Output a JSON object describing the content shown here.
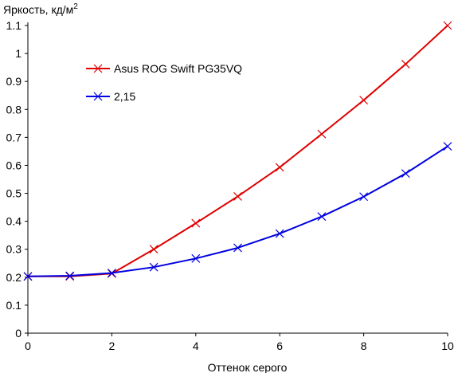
{
  "chart_data": {
    "type": "line",
    "ylabel": "Яркость, кд/м",
    "ylabel_superscript": "2",
    "xlabel": "Оттенок серого",
    "xlim": [
      0,
      10
    ],
    "ylim": [
      0,
      1.1
    ],
    "x_ticks": [
      0,
      2,
      4,
      6,
      8,
      10
    ],
    "x_tick_labels": [
      "0",
      "2",
      "4",
      "6",
      "8",
      "10"
    ],
    "y_ticks": [
      0,
      0.1,
      0.2,
      0.3,
      0.4,
      0.5,
      0.6,
      0.7,
      0.8,
      0.9,
      1,
      1.1
    ],
    "y_tick_labels": [
      "0",
      "0.1",
      "0.2",
      "0.3",
      "0.4",
      "0.5",
      "0.6",
      "0.7",
      "0.8",
      "0.9",
      "1",
      "1.1"
    ],
    "grid": false,
    "legend_position": "top-left",
    "marker": "x",
    "series": [
      {
        "name": "Asus ROG Swift PG35VQ",
        "color": "#e00000",
        "x": [
          0,
          1,
          2,
          3,
          4,
          5,
          6,
          7,
          8,
          9,
          10
        ],
        "y": [
          0.203,
          0.203,
          0.213,
          0.3,
          0.393,
          0.489,
          0.593,
          0.712,
          0.833,
          0.962,
          1.1
        ]
      },
      {
        "name": "2,15",
        "color": "#0000e0",
        "x": [
          0,
          1,
          2,
          3,
          4,
          5,
          6,
          7,
          8,
          9,
          10
        ],
        "y": [
          0.203,
          0.205,
          0.215,
          0.236,
          0.267,
          0.305,
          0.356,
          0.417,
          0.488,
          0.571,
          0.668
        ]
      }
    ]
  }
}
